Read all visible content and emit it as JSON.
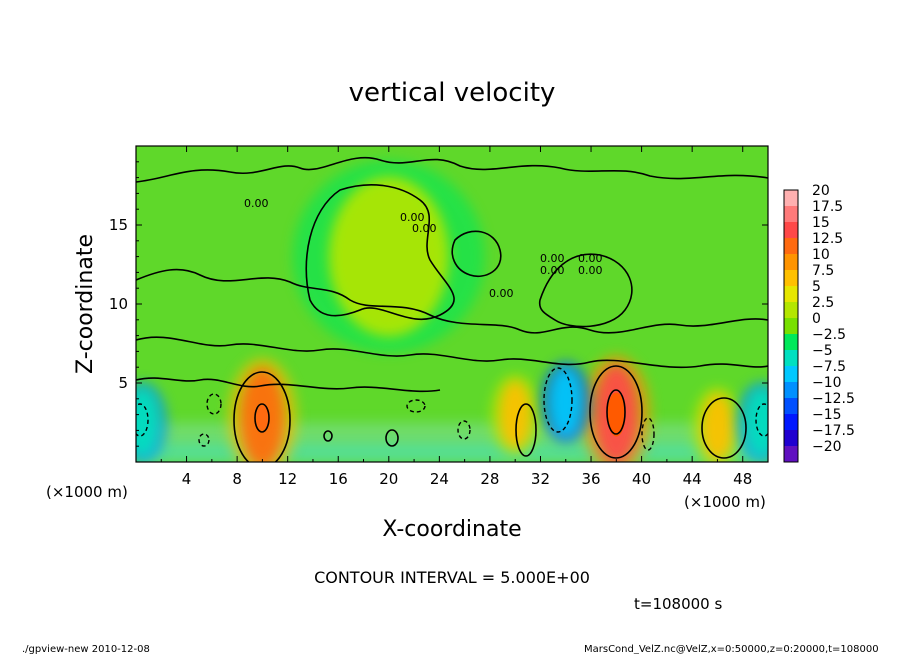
{
  "chart_data": {
    "type": "heatmap",
    "title": "vertical velocity",
    "xlabel": "X-coordinate",
    "ylabel": "Z-coordinate",
    "x_unit_left": "(×1000 m)",
    "x_unit_right": "(×1000 m)",
    "xlim": [
      0,
      50
    ],
    "ylim": [
      0,
      20
    ],
    "x_ticks": [
      "4",
      "8",
      "12",
      "16",
      "20",
      "24",
      "28",
      "32",
      "36",
      "40",
      "44",
      "48"
    ],
    "y_ticks": [
      "5",
      "10",
      "15"
    ],
    "contour_interval_text": "CONTOUR INTERVAL = 5.000E+00",
    "time_text": "t=108000  s",
    "contour_labels": [
      "0.00",
      "0.00",
      "0.00",
      "0.00",
      "0.00",
      "0.00",
      "0.00",
      "0.00"
    ],
    "colorbar": {
      "labels": [
        "20",
        "17.5",
        "15",
        "12.5",
        "10",
        "7.5",
        "5",
        "2.5",
        "0",
        "−2.5",
        "−5",
        "−7.5",
        "−10",
        "−12.5",
        "−15",
        "−17.5",
        "−20"
      ],
      "colors": [
        "#ffb0b0",
        "#ff7a7a",
        "#ff4848",
        "#ff6a10",
        "#ff9400",
        "#ffc000",
        "#e6e600",
        "#b4e600",
        "#78e000",
        "#00e85a",
        "#00e0c0",
        "#00c8ff",
        "#0090ff",
        "#0050ff",
        "#0018ff",
        "#2000d0",
        "#6010c0"
      ]
    },
    "features": [
      {
        "x": 10,
        "z": 2.8,
        "value": 12,
        "label": "updraft"
      },
      {
        "x": 38,
        "z": 3.0,
        "value": 14,
        "label": "updraft"
      },
      {
        "x": 46,
        "z": 2.2,
        "value": 8,
        "label": "updraft"
      },
      {
        "x": 30,
        "z": 3.0,
        "value": 7,
        "label": "updraft"
      },
      {
        "x": 34,
        "z": 3.8,
        "value": -7,
        "label": "downdraft"
      },
      {
        "x": 0.5,
        "z": 2.5,
        "value": -5,
        "label": "downdraft"
      },
      {
        "x": 49.5,
        "z": 2.5,
        "value": -5,
        "label": "downdraft"
      },
      {
        "x": 20,
        "z": 13,
        "value": 2,
        "label": "weak updraft"
      }
    ]
  },
  "footer": {
    "left": "./gpview-new   2010-12-08",
    "right": "MarsCond_VelZ.nc@VelZ,x=0:50000,z=0:20000,t=108000"
  }
}
